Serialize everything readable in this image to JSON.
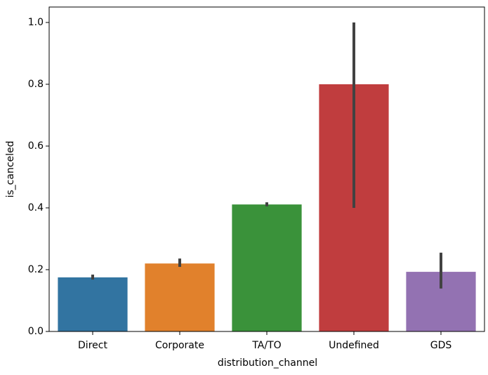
{
  "chart_data": {
    "type": "bar",
    "x_label": "distribution_channel",
    "y_label": "is_canceled",
    "categories": [
      "Direct",
      "Corporate",
      "TA/TO",
      "Undefined",
      "GDS"
    ],
    "values": [
      0.175,
      0.22,
      0.411,
      0.8,
      0.193
    ],
    "ci_low": [
      0.168,
      0.209,
      0.405,
      0.4,
      0.139
    ],
    "ci_high": [
      0.184,
      0.236,
      0.418,
      1.0,
      0.255
    ],
    "colors": [
      "#3274a1",
      "#e1812c",
      "#3a923a",
      "#c03d3e",
      "#9372b2"
    ],
    "error_color": "#424242",
    "ylim": [
      0,
      1.05
    ],
    "yticks": [
      {
        "value": 0,
        "label": "0.0"
      },
      0.2,
      0.4,
      0.6,
      0.8,
      {
        "value": 1,
        "label": "1.0"
      }
    ]
  }
}
